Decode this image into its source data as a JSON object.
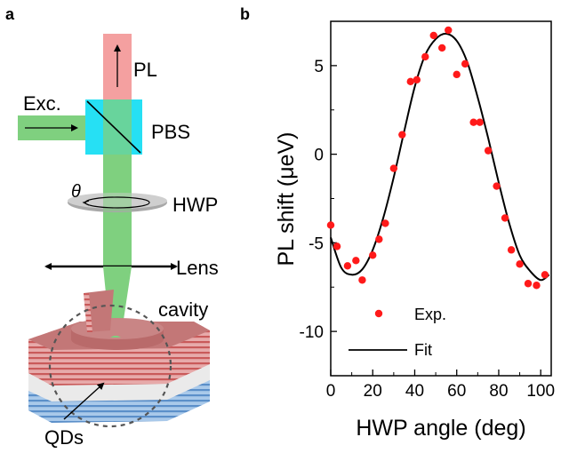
{
  "panel_a": {
    "letter": "a",
    "labels": {
      "pl": "PL",
      "exc": "Exc.",
      "pbs": "PBS",
      "theta": "θ",
      "hwp": "HWP",
      "lens": "Lens",
      "cavity": "cavity",
      "qds": "QDs"
    },
    "colors": {
      "pl_beam": "#f4a0a0",
      "exc_beam": "#7fd07f",
      "pbs": "#26e0f4",
      "hwp": "#a8a8a8",
      "cavity_red": "#c95a5a",
      "cavity_blue": "#5b8fc9"
    }
  },
  "panel_b": {
    "letter": "b"
  },
  "chart_data": {
    "type": "scatter",
    "xlabel": "HWP angle (deg)",
    "ylabel": "PL shift (μeV)",
    "xlim": [
      0,
      105
    ],
    "ylim": [
      -12.5,
      7.5
    ],
    "xticks": [
      0,
      20,
      40,
      60,
      80,
      100
    ],
    "xtick_labels": [
      "0",
      "20",
      "40",
      "60",
      "80",
      "100"
    ],
    "yticks": [
      -10,
      -5,
      0,
      5
    ],
    "ytick_labels": [
      "-10",
      "-5",
      "0",
      "5"
    ],
    "legend_placement": "bottom-left",
    "grid": false,
    "series": [
      {
        "name": "Exp.",
        "kind": "points",
        "color": "#ff1a1a",
        "x": [
          0,
          3,
          8,
          12,
          15,
          20,
          23,
          26,
          30,
          34,
          38,
          41,
          45,
          49,
          53,
          56,
          60,
          64,
          68,
          71,
          75,
          79,
          83,
          86,
          90,
          94,
          98,
          102
        ],
        "y": [
          -4.0,
          -5.2,
          -6.3,
          -6.0,
          -7.1,
          -5.7,
          -4.8,
          -3.9,
          -0.8,
          1.1,
          4.1,
          4.2,
          5.5,
          6.7,
          6.0,
          7.0,
          4.5,
          5.1,
          1.8,
          1.8,
          0.2,
          -1.8,
          -3.6,
          -5.4,
          -6.2,
          -7.3,
          -7.4,
          -6.8
        ]
      },
      {
        "name": "Fit",
        "kind": "line",
        "color": "#000000",
        "x": [
          0,
          5,
          10,
          15,
          20,
          25,
          30,
          35,
          40,
          45,
          50,
          55,
          60,
          65,
          70,
          75,
          80,
          85,
          90,
          95,
          100,
          104
        ],
        "y": [
          -4.7,
          -6.4,
          -6.8,
          -6.5,
          -5.4,
          -3.6,
          -1.3,
          1.3,
          3.8,
          5.6,
          6.5,
          6.8,
          6.4,
          5.2,
          3.2,
          0.9,
          -1.6,
          -3.9,
          -5.7,
          -6.6,
          -7.1,
          -6.8
        ]
      }
    ]
  }
}
